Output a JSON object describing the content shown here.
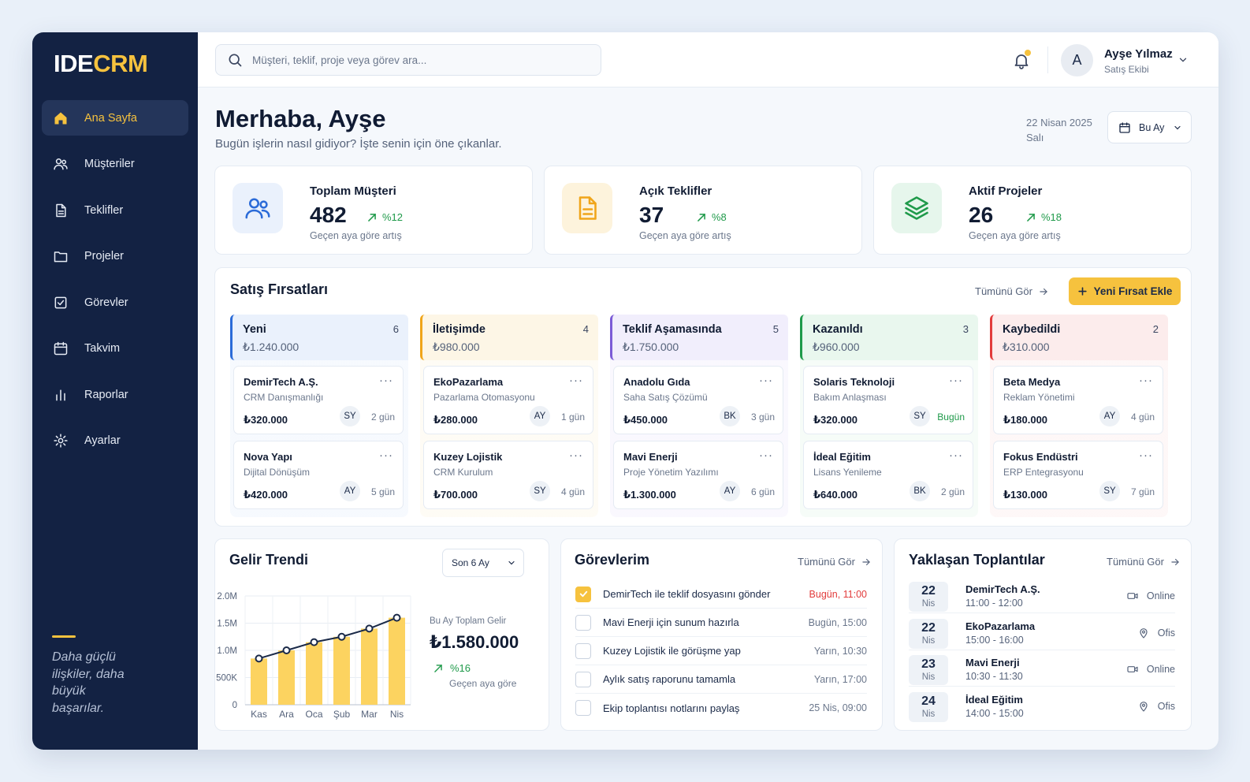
{
  "app": {
    "logo_a": "IDE",
    "logo_b": "CRM"
  },
  "sidebar": {
    "items": [
      {
        "label": "Ana Sayfa",
        "icon": "home-icon",
        "active": true
      },
      {
        "label": "Müşteriler",
        "icon": "users-icon"
      },
      {
        "label": "Teklifler",
        "icon": "document-icon"
      },
      {
        "label": "Projeler",
        "icon": "folder-icon"
      },
      {
        "label": "Görevler",
        "icon": "checkbox-icon"
      },
      {
        "label": "Takvim",
        "icon": "calendar-icon"
      },
      {
        "label": "Raporlar",
        "icon": "bar-chart-icon"
      },
      {
        "label": "Ayarlar",
        "icon": "gear-icon"
      }
    ],
    "tagline": "Daha güçlü ilişkiler, daha büyük başarılar.",
    "accent": "#f6c23e"
  },
  "topbar": {
    "search_placeholder": "Müşteri, teklif, proje veya görev ara...",
    "user": {
      "initial": "A",
      "name": "Ayşe Yılmaz",
      "role": "Satış Ekibi"
    }
  },
  "header": {
    "greeting": "Merhaba, Ayşe",
    "subtitle": "Bugün işlerin nasıl gidiyor? İşte senin için öne çıkanlar.",
    "date": "22 Nisan 2025",
    "weekday": "Salı",
    "period": "Bu Ay"
  },
  "stats": [
    {
      "label": "Toplam Müşteri",
      "value": "482",
      "change": "%12",
      "note": "Geçen aya göre artış",
      "icon": "users-icon",
      "color": "#2b6bd8"
    },
    {
      "label": "Açık Teklifler",
      "value": "37",
      "change": "%8",
      "note": "Geçen aya göre artış",
      "icon": "document-icon",
      "color": "#f0a51a"
    },
    {
      "label": "Aktif Projeler",
      "value": "26",
      "change": "%18",
      "note": "Geçen aya göre artış",
      "icon": "layers-icon",
      "color": "#1f9a4a"
    }
  ],
  "pipeline": {
    "title": "Satış Fırsatları",
    "see_all": "Tümünü Gör",
    "add_label": "Yeni Fırsat Ekle",
    "columns": [
      {
        "name": "Yeni",
        "count": "6",
        "total": "₺1.240.000",
        "color": "#2b6bd8",
        "bg": "#eaf1fc",
        "cards": [
          {
            "name": "DemirTech A.Ş.",
            "desc": "CRM Danışmanlığı",
            "amount": "₺320.000",
            "owner": "SY",
            "age": "2 gün"
          },
          {
            "name": "Nova Yapı",
            "desc": "Dijital Dönüşüm",
            "amount": "₺420.000",
            "owner": "AY",
            "age": "5 gün"
          }
        ]
      },
      {
        "name": "İletişimde",
        "count": "4",
        "total": "₺980.000",
        "color": "#f0a51a",
        "bg": "#fdf6e6",
        "cards": [
          {
            "name": "EkoPazarlama",
            "desc": "Pazarlama Otomasyonu",
            "amount": "₺280.000",
            "owner": "AY",
            "age": "1 gün"
          },
          {
            "name": "Kuzey Lojistik",
            "desc": "CRM Kurulum",
            "amount": "₺700.000",
            "owner": "SY",
            "age": "4 gün"
          }
        ]
      },
      {
        "name": "Teklif Aşamasında",
        "count": "5",
        "total": "₺1.750.000",
        "color": "#7b5bd6",
        "bg": "#f1eefc",
        "cards": [
          {
            "name": "Anadolu Gıda",
            "desc": "Saha Satış Çözümü",
            "amount": "₺450.000",
            "owner": "BK",
            "age": "3 gün"
          },
          {
            "name": "Mavi Enerji",
            "desc": "Proje Yönetim Yazılımı",
            "amount": "₺1.300.000",
            "owner": "AY",
            "age": "6 gün"
          }
        ]
      },
      {
        "name": "Kazanıldı",
        "count": "3",
        "total": "₺960.000",
        "color": "#1f9a4a",
        "bg": "#e9f7ee",
        "cards": [
          {
            "name": "Solaris Teknoloji",
            "desc": "Bakım Anlaşması",
            "amount": "₺320.000",
            "owner": "SY",
            "age": "Bugün",
            "today": true
          },
          {
            "name": "İdeal Eğitim",
            "desc": "Lisans Yenileme",
            "amount": "₺640.000",
            "owner": "BK",
            "age": "2 gün"
          }
        ]
      },
      {
        "name": "Kaybedildi",
        "count": "2",
        "total": "₺310.000",
        "color": "#e23b3b",
        "bg": "#fcecec",
        "cards": [
          {
            "name": "Beta Medya",
            "desc": "Reklam Yönetimi",
            "amount": "₺180.000",
            "owner": "AY",
            "age": "4 gün"
          },
          {
            "name": "Fokus Endüstri",
            "desc": "ERP Entegrasyonu",
            "amount": "₺130.000",
            "owner": "SY",
            "age": "7 gün"
          }
        ]
      }
    ]
  },
  "revenue": {
    "title": "Gelir Trendi",
    "period": "Son 6 Ay",
    "total_label": "Bu Ay Toplam Gelir",
    "total_value": "₺1.580.000",
    "change": "%16",
    "change_note": "Geçen aya göre"
  },
  "chart_data": {
    "type": "bar",
    "categories": [
      "Kas",
      "Ara",
      "Oca",
      "Şub",
      "Mar",
      "Nis"
    ],
    "values": [
      0.85,
      1.0,
      1.15,
      1.25,
      1.4,
      1.6
    ],
    "line_values": [
      0.85,
      1.0,
      1.15,
      1.25,
      1.4,
      1.6
    ],
    "ylim": [
      0,
      2.0
    ],
    "yticks": [
      0,
      0.5,
      1.0,
      1.5,
      2.0
    ],
    "ytick_labels": [
      "0",
      "500K",
      "1.0M",
      "1.5M",
      "2.0M"
    ],
    "grid": true,
    "bar_color": "#fcd360",
    "line_color": "#1b2a48"
  },
  "tasks": {
    "title": "Görevlerim",
    "see_all": "Tümünü Gör",
    "items": [
      {
        "text": "DemirTech ile teklif dosyasını gönder",
        "time": "Bugün, 11:00",
        "done": true,
        "urgent": true
      },
      {
        "text": "Mavi Enerji için sunum hazırla",
        "time": "Bugün, 15:00",
        "done": false
      },
      {
        "text": "Kuzey Lojistik ile görüşme yap",
        "time": "Yarın, 10:30",
        "done": false
      },
      {
        "text": "Aylık satış raporunu tamamla",
        "time": "Yarın, 17:00",
        "done": false
      },
      {
        "text": "Ekip toplantısı notlarını paylaş",
        "time": "25 Nis, 09:00",
        "done": false
      }
    ]
  },
  "meetings": {
    "title": "Yaklaşan Toplantılar",
    "see_all": "Tümünü Gör",
    "items": [
      {
        "day": "22",
        "month": "Nis",
        "name": "DemirTech A.Ş.",
        "time": "11:00 - 12:00",
        "loc": "Online",
        "icon": "video-icon"
      },
      {
        "day": "22",
        "month": "Nis",
        "name": "EkoPazarlama",
        "time": "15:00 - 16:00",
        "loc": "Ofis",
        "icon": "location-pin-icon"
      },
      {
        "day": "23",
        "month": "Nis",
        "name": "Mavi Enerji",
        "time": "10:30 - 11:30",
        "loc": "Online",
        "icon": "video-icon"
      },
      {
        "day": "24",
        "month": "Nis",
        "name": "İdeal Eğitim",
        "time": "14:00 - 15:00",
        "loc": "Ofis",
        "icon": "location-pin-icon"
      }
    ]
  }
}
